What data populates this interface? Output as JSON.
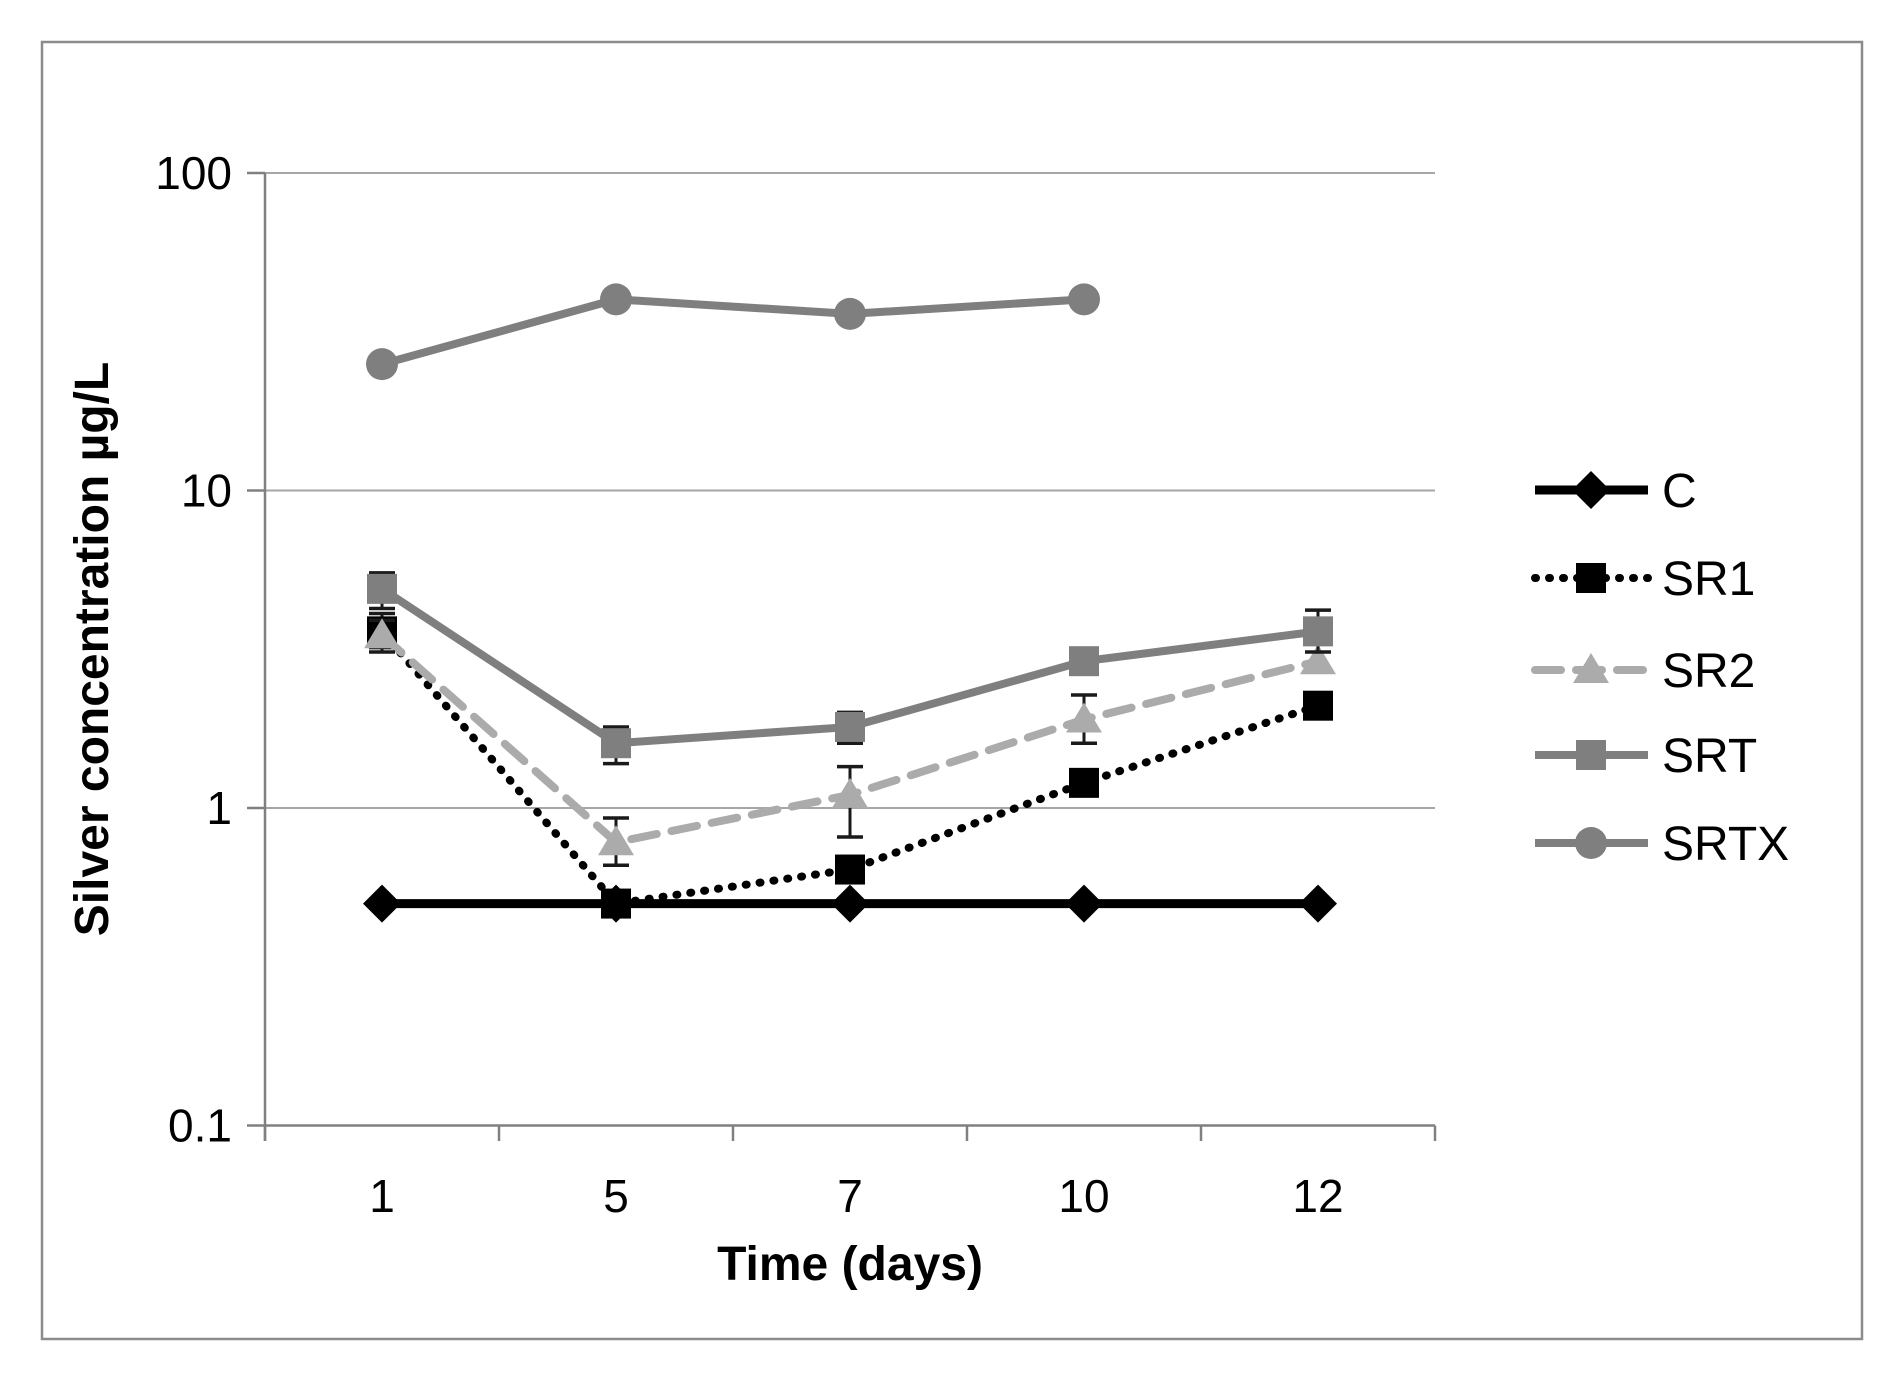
{
  "figure": {
    "background": "#ffffff",
    "border_color": "#8c8c8c"
  },
  "chart_data": {
    "type": "line",
    "title": "",
    "xlabel": "Time (days)",
    "ylabel": "Silver concentration µg/L",
    "categories": [
      "1",
      "5",
      "7",
      "10",
      "12"
    ],
    "y_scale": "log10",
    "ylim": [
      0.1,
      100
    ],
    "y_tick_labels": [
      "100",
      "10",
      "1",
      "0.1"
    ],
    "y_tick_values": [
      100,
      10,
      1,
      0.1
    ],
    "grid": "horizontal",
    "legend_position": "right",
    "axis_color": "#808080",
    "gridline_color": "#a6a6a6",
    "text_color": "#000000",
    "error_bar_color": "#1a1a1a",
    "series": [
      {
        "name": "C",
        "color": "#000000",
        "line_style": "solid",
        "marker": "diamond",
        "values": [
          0.5,
          0.5,
          0.5,
          0.5,
          0.5
        ],
        "error_bars": [
          null,
          null,
          null,
          null,
          null
        ]
      },
      {
        "name": "SR1",
        "color": "#000000",
        "line_style": "dotted",
        "marker": "square",
        "values": [
          3.6,
          0.5,
          0.64,
          1.2,
          2.1
        ],
        "error_bars": [
          [
            3.2,
            4.1
          ],
          null,
          null,
          null,
          null
        ]
      },
      {
        "name": "SR2",
        "color": "#ababab",
        "line_style": "dashed",
        "marker": "triangle",
        "values": [
          3.5,
          0.78,
          1.1,
          1.9,
          2.9
        ],
        "error_bars": [
          [
            3.1,
            3.9
          ],
          [
            0.66,
            0.93
          ],
          [
            0.81,
            1.35
          ],
          [
            1.6,
            2.27
          ],
          null
        ]
      },
      {
        "name": "SRT",
        "color": "#7f7f7f",
        "line_style": "solid",
        "marker": "square",
        "values": [
          4.9,
          1.6,
          1.8,
          2.9,
          3.6
        ],
        "error_bars": [
          [
            4.25,
            5.5
          ],
          [
            1.38,
            1.8
          ],
          [
            1.6,
            2.0
          ],
          null,
          [
            3.1,
            4.2
          ]
        ]
      },
      {
        "name": "SRTX",
        "color": "#7f7f7f",
        "line_style": "solid",
        "marker": "circle",
        "values": [
          25,
          40,
          36,
          40,
          null
        ],
        "error_bars": [
          null,
          null,
          null,
          null,
          null
        ]
      }
    ]
  }
}
